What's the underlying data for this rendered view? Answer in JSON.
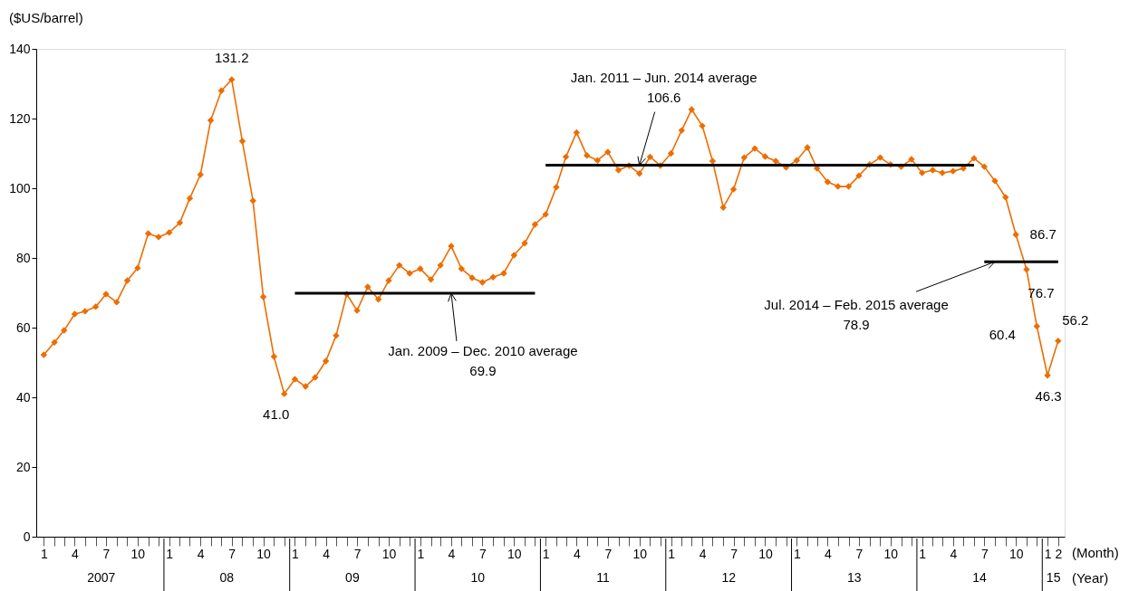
{
  "chart_data": {
    "type": "line",
    "ylabel": "($US/barrel)",
    "xlabel": "(Month)",
    "grid": false,
    "line_style": "solid",
    "x": [
      "2007-01",
      "2007-02",
      "2007-03",
      "2007-04",
      "2007-05",
      "2007-06",
      "2007-07",
      "2007-08",
      "2007-09",
      "2007-10",
      "2007-11",
      "2007-12",
      "2008-01",
      "2008-02",
      "2008-03",
      "2008-04",
      "2008-05",
      "2008-06",
      "2008-07",
      "2008-08",
      "2008-09",
      "2008-10",
      "2008-11",
      "2008-12",
      "2009-01",
      "2009-02",
      "2009-03",
      "2009-04",
      "2009-05",
      "2009-06",
      "2009-07",
      "2009-08",
      "2009-09",
      "2009-10",
      "2009-11",
      "2009-12",
      "2010-01",
      "2010-02",
      "2010-03",
      "2010-04",
      "2010-05",
      "2010-06",
      "2010-07",
      "2010-08",
      "2010-09",
      "2010-10",
      "2010-11",
      "2010-12",
      "2011-01",
      "2011-02",
      "2011-03",
      "2011-04",
      "2011-05",
      "2011-06",
      "2011-07",
      "2011-08",
      "2011-09",
      "2011-10",
      "2011-11",
      "2011-12",
      "2012-01",
      "2012-02",
      "2012-03",
      "2012-04",
      "2012-05",
      "2012-06",
      "2012-07",
      "2012-08",
      "2012-09",
      "2012-10",
      "2012-11",
      "2012-12",
      "2013-01",
      "2013-02",
      "2013-03",
      "2013-04",
      "2013-05",
      "2013-06",
      "2013-07",
      "2013-08",
      "2013-09",
      "2013-10",
      "2013-11",
      "2013-12",
      "2014-01",
      "2014-02",
      "2014-03",
      "2014-04",
      "2014-05",
      "2014-06",
      "2014-07",
      "2014-08",
      "2014-09",
      "2014-10",
      "2014-11",
      "2014-12",
      "2015-01",
      "2015-02"
    ],
    "series": [
      {
        "color": "#ed6d00",
        "marker": "diamond",
        "values": [
          52.2,
          55.8,
          59.2,
          63.9,
          64.7,
          66.0,
          69.6,
          67.3,
          73.5,
          77.1,
          87.0,
          86.0,
          87.3,
          90.1,
          97.1,
          103.9,
          119.5,
          128.0,
          131.2,
          113.5,
          96.4,
          68.8,
          51.7,
          41.0,
          45.2,
          43.1,
          45.7,
          50.4,
          57.7,
          69.6,
          64.9,
          71.7,
          68.1,
          73.5,
          77.9,
          75.6,
          76.9,
          73.8,
          77.9,
          83.4,
          76.9,
          74.3,
          73.0,
          74.5,
          75.6,
          80.8,
          84.2,
          89.6,
          92.5,
          100.3,
          109.0,
          116.0,
          109.4,
          108.0,
          110.4,
          105.2,
          106.5,
          104.2,
          109.0,
          106.5,
          110.0,
          116.6,
          122.6,
          117.9,
          107.8,
          94.5,
          99.7,
          108.8,
          111.4,
          109.1,
          107.8,
          106.0,
          108.0,
          111.7,
          105.7,
          101.8,
          100.5,
          100.5,
          103.6,
          106.8,
          108.8,
          106.8,
          106.2,
          108.3,
          104.4,
          105.2,
          104.4,
          104.9,
          105.7,
          108.6,
          106.2,
          102.1,
          97.4,
          86.7,
          76.7,
          60.4,
          46.3,
          56.2
        ],
        "value_labels": [
          null,
          null,
          null,
          null,
          null,
          null,
          null,
          null,
          null,
          null,
          null,
          null,
          null,
          null,
          null,
          null,
          null,
          null,
          "131.2",
          null,
          null,
          null,
          null,
          "41.0",
          null,
          null,
          null,
          null,
          null,
          null,
          null,
          null,
          null,
          null,
          null,
          null,
          null,
          null,
          null,
          null,
          null,
          null,
          null,
          null,
          null,
          null,
          null,
          null,
          null,
          null,
          null,
          null,
          null,
          null,
          null,
          null,
          null,
          null,
          null,
          null,
          null,
          null,
          null,
          null,
          null,
          null,
          null,
          null,
          null,
          null,
          null,
          null,
          null,
          null,
          null,
          null,
          null,
          null,
          null,
          null,
          null,
          null,
          null,
          null,
          null,
          null,
          null,
          null,
          null,
          null,
          null,
          null,
          null,
          "86.7",
          "76.7",
          "60.4",
          "46.3",
          "56.2"
        ]
      },
      {
        "color": "#000000",
        "marker": "none",
        "x": [
          "2009-01",
          "2010-12"
        ],
        "values": [
          69.9,
          69.9
        ]
      },
      {
        "color": "#000000",
        "marker": "none",
        "x": [
          "2011-01",
          "2014-06"
        ],
        "values": [
          106.6,
          106.6
        ]
      },
      {
        "color": "#000000",
        "marker": "none",
        "x": [
          "2014-07",
          "2015-02"
        ],
        "values": [
          78.9,
          78.9
        ]
      }
    ],
    "xlim": [
      "2006-12-10",
      "2015-02-20"
    ],
    "xticks": [
      {
        "value": "2007-01",
        "label": "1"
      },
      {
        "value": "2007-02",
        "label": null
      },
      {
        "value": "2007-03",
        "label": null
      },
      {
        "value": "2007-04",
        "label": "4"
      },
      {
        "value": "2007-05",
        "label": null
      },
      {
        "value": "2007-06",
        "label": null
      },
      {
        "value": "2007-07",
        "label": "7"
      },
      {
        "value": "2007-08",
        "label": null
      },
      {
        "value": "2007-09",
        "label": null
      },
      {
        "value": "2007-10",
        "label": "10"
      },
      {
        "value": "2007-11",
        "label": null
      },
      {
        "value": "2007-12",
        "label": null
      },
      {
        "value": "2008-01",
        "label": "1"
      },
      {
        "value": "2008-02",
        "label": null
      },
      {
        "value": "2008-03",
        "label": null
      },
      {
        "value": "2008-04",
        "label": "4"
      },
      {
        "value": "2008-05",
        "label": null
      },
      {
        "value": "2008-06",
        "label": null
      },
      {
        "value": "2008-07",
        "label": "7"
      },
      {
        "value": "2008-08",
        "label": null
      },
      {
        "value": "2008-09",
        "label": null
      },
      {
        "value": "2008-10",
        "label": "10"
      },
      {
        "value": "2008-11",
        "label": null
      },
      {
        "value": "2008-12",
        "label": null
      },
      {
        "value": "2009-01",
        "label": "1"
      },
      {
        "value": "2009-02",
        "label": null
      },
      {
        "value": "2009-03",
        "label": null
      },
      {
        "value": "2009-04",
        "label": "4"
      },
      {
        "value": "2009-05",
        "label": null
      },
      {
        "value": "2009-06",
        "label": null
      },
      {
        "value": "2009-07",
        "label": "7"
      },
      {
        "value": "2009-08",
        "label": null
      },
      {
        "value": "2009-09",
        "label": null
      },
      {
        "value": "2009-10",
        "label": "10"
      },
      {
        "value": "2009-11",
        "label": null
      },
      {
        "value": "2009-12",
        "label": null
      },
      {
        "value": "2010-01",
        "label": "1"
      },
      {
        "value": "2010-02",
        "label": null
      },
      {
        "value": "2010-03",
        "label": null
      },
      {
        "value": "2010-04",
        "label": "4"
      },
      {
        "value": "2010-05",
        "label": null
      },
      {
        "value": "2010-06",
        "label": null
      },
      {
        "value": "2010-07",
        "label": "7"
      },
      {
        "value": "2010-08",
        "label": null
      },
      {
        "value": "2010-09",
        "label": null
      },
      {
        "value": "2010-10",
        "label": "10"
      },
      {
        "value": "2010-11",
        "label": null
      },
      {
        "value": "2010-12",
        "label": null
      },
      {
        "value": "2011-01",
        "label": "1"
      },
      {
        "value": "2011-02",
        "label": null
      },
      {
        "value": "2011-03",
        "label": null
      },
      {
        "value": "2011-04",
        "label": "4"
      },
      {
        "value": "2011-05",
        "label": null
      },
      {
        "value": "2011-06",
        "label": null
      },
      {
        "value": "2011-07",
        "label": "7"
      },
      {
        "value": "2011-08",
        "label": null
      },
      {
        "value": "2011-09",
        "label": null
      },
      {
        "value": "2011-10",
        "label": "10"
      },
      {
        "value": "2011-11",
        "label": null
      },
      {
        "value": "2011-12",
        "label": null
      },
      {
        "value": "2012-01",
        "label": "1"
      },
      {
        "value": "2012-02",
        "label": null
      },
      {
        "value": "2012-03",
        "label": null
      },
      {
        "value": "2012-04",
        "label": "4"
      },
      {
        "value": "2012-05",
        "label": null
      },
      {
        "value": "2012-06",
        "label": null
      },
      {
        "value": "2012-07",
        "label": "7"
      },
      {
        "value": "2012-08",
        "label": null
      },
      {
        "value": "2012-09",
        "label": null
      },
      {
        "value": "2012-10",
        "label": "10"
      },
      {
        "value": "2012-11",
        "label": null
      },
      {
        "value": "2012-12",
        "label": null
      },
      {
        "value": "2013-01",
        "label": "1"
      },
      {
        "value": "2013-02",
        "label": null
      },
      {
        "value": "2013-03",
        "label": null
      },
      {
        "value": "2013-04",
        "label": "4"
      },
      {
        "value": "2013-05",
        "label": null
      },
      {
        "value": "2013-06",
        "label": null
      },
      {
        "value": "2013-07",
        "label": "7"
      },
      {
        "value": "2013-08",
        "label": null
      },
      {
        "value": "2013-09",
        "label": null
      },
      {
        "value": "2013-10",
        "label": "10"
      },
      {
        "value": "2013-11",
        "label": null
      },
      {
        "value": "2013-12",
        "label": null
      },
      {
        "value": "2014-01",
        "label": "1"
      },
      {
        "value": "2014-02",
        "label": null
      },
      {
        "value": "2014-03",
        "label": null
      },
      {
        "value": "2014-04",
        "label": "4"
      },
      {
        "value": "2014-05",
        "label": null
      },
      {
        "value": "2014-06",
        "label": null
      },
      {
        "value": "2014-07",
        "label": "7"
      },
      {
        "value": "2014-08",
        "label": null
      },
      {
        "value": "2014-09",
        "label": null
      },
      {
        "value": "2014-10",
        "label": "10"
      },
      {
        "value": "2014-11",
        "label": null
      },
      {
        "value": "2014-12",
        "label": null
      },
      {
        "value": "2015-01",
        "label": "1"
      },
      {
        "value": "2015-02",
        "label": "2"
      }
    ],
    "ylim": [
      0,
      140
    ],
    "yticks": [
      0,
      20,
      40,
      60,
      80,
      100,
      120,
      140
    ],
    "annotations": [
      {
        "text": "Jan. 2011 – Jun. 2014 average\n106.6",
        "x": "2011-10",
        "y": 106.6
      },
      {
        "text": "Jan. 2009 – Dec. 2010 average\n69.9",
        "x": "2010-04",
        "y": 69.9
      },
      {
        "text": "Jul. 2014 – Feb. 2015 average\n78.9",
        "x": "2014-08",
        "y": 78.9
      },
      "2007",
      "08",
      "09",
      "10",
      "11",
      "12",
      "13",
      "14",
      "15",
      "(Year)"
    ]
  }
}
